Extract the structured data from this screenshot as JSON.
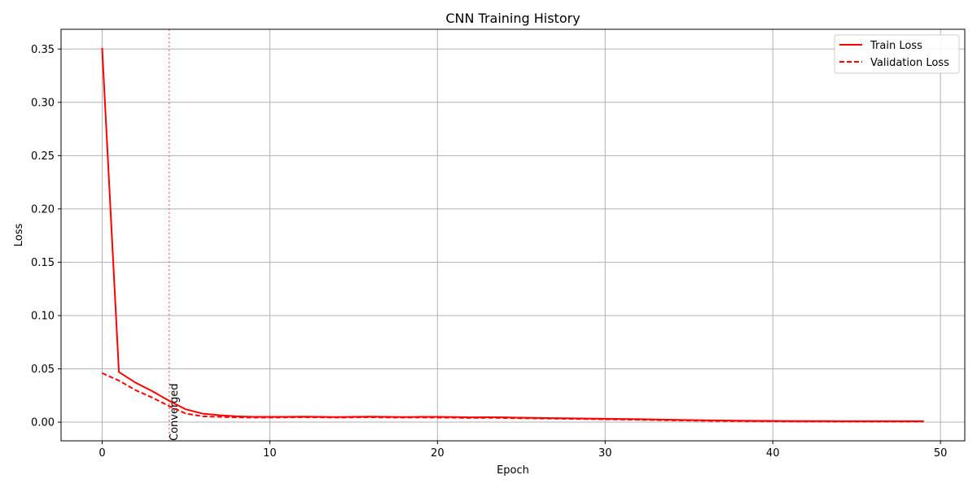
{
  "chart_data": {
    "type": "line",
    "title": "CNN Training History",
    "xlabel": "Epoch",
    "ylabel": "Loss",
    "xlim": [
      -2.45,
      51.45
    ],
    "ylim": [
      -0.0175,
      0.3685
    ],
    "xticks": [
      0,
      10,
      20,
      30,
      40,
      50
    ],
    "yticks": [
      0.0,
      0.05,
      0.1,
      0.15,
      0.2,
      0.25,
      0.3,
      0.35
    ],
    "ytick_labels": [
      "0.00",
      "0.05",
      "0.10",
      "0.15",
      "0.20",
      "0.25",
      "0.30",
      "0.35"
    ],
    "grid": true,
    "legend": {
      "position": "top-right"
    },
    "series": [
      {
        "name": "Train Loss",
        "style": "solid",
        "color": "#ff0000",
        "x": [
          0,
          1,
          2,
          3,
          4,
          5,
          6,
          7,
          8,
          9,
          10,
          11,
          12,
          13,
          14,
          15,
          16,
          17,
          18,
          19,
          20,
          21,
          22,
          23,
          24,
          25,
          26,
          27,
          28,
          29,
          30,
          31,
          32,
          33,
          34,
          35,
          36,
          37,
          38,
          39,
          40,
          41,
          42,
          43,
          44,
          45,
          46,
          47,
          48,
          49
        ],
        "y": [
          0.351,
          0.047,
          0.037,
          0.029,
          0.02,
          0.012,
          0.008,
          0.0065,
          0.0055,
          0.005,
          0.005,
          0.005,
          0.0052,
          0.005,
          0.0048,
          0.005,
          0.0052,
          0.005,
          0.0048,
          0.005,
          0.005,
          0.0048,
          0.0045,
          0.0046,
          0.0045,
          0.0042,
          0.004,
          0.0038,
          0.0036,
          0.0034,
          0.0032,
          0.003,
          0.0028,
          0.0025,
          0.0022,
          0.002,
          0.0018,
          0.0016,
          0.0014,
          0.0013,
          0.0012,
          0.0011,
          0.001,
          0.001,
          0.0009,
          0.0009,
          0.0009,
          0.0009,
          0.0009,
          0.0009
        ]
      },
      {
        "name": "Validation Loss",
        "style": "dashed",
        "color": "#ff0000",
        "x": [
          0,
          1,
          2,
          3,
          4,
          5,
          6,
          7,
          8,
          9,
          10,
          11,
          12,
          13,
          14,
          15,
          16,
          17,
          18,
          19,
          20,
          21,
          22,
          23,
          24,
          25,
          26,
          27,
          28,
          29,
          30,
          31,
          32,
          33,
          34,
          35,
          36,
          37,
          38,
          39,
          40,
          41,
          42,
          43,
          44,
          45,
          46,
          47,
          48,
          49
        ],
        "y": [
          0.046,
          0.039,
          0.03,
          0.023,
          0.015,
          0.008,
          0.0055,
          0.005,
          0.0045,
          0.0043,
          0.0043,
          0.0045,
          0.0046,
          0.0045,
          0.0043,
          0.0045,
          0.0046,
          0.0044,
          0.0043,
          0.0044,
          0.0043,
          0.0042,
          0.004,
          0.0041,
          0.0039,
          0.0037,
          0.0035,
          0.0033,
          0.0031,
          0.0029,
          0.0027,
          0.0025,
          0.0023,
          0.002,
          0.0017,
          0.0015,
          0.0013,
          0.0011,
          0.001,
          0.0009,
          0.0008,
          0.0007,
          0.0006,
          0.0006,
          0.0005,
          0.0005,
          0.0005,
          0.0005,
          0.0005,
          0.0005
        ]
      }
    ],
    "annotations": [
      {
        "type": "vline",
        "x": 4,
        "color": "#f08080",
        "style": "dotted",
        "label": "Converged"
      }
    ]
  }
}
